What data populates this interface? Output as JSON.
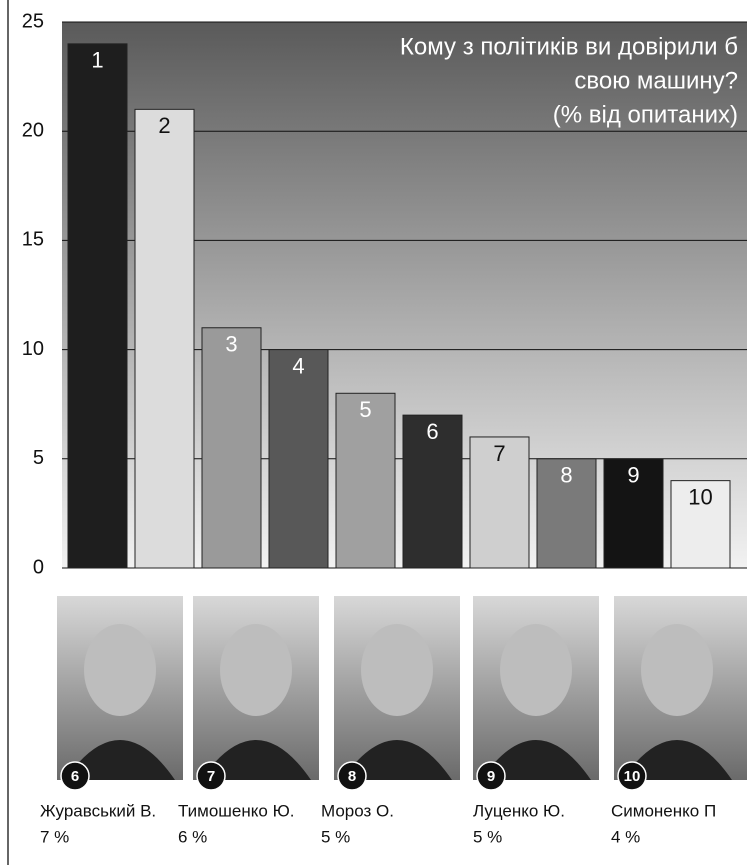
{
  "chart_data": {
    "type": "bar",
    "title": [
      "Кому з політиків ви довірили б",
      "свою машину?",
      "(% від опитаних)"
    ],
    "categories": [
      "1",
      "2",
      "3",
      "4",
      "5",
      "6",
      "7",
      "8",
      "9",
      "10"
    ],
    "values": [
      24,
      21,
      11,
      10,
      8,
      7,
      6,
      5,
      5,
      4
    ],
    "colors": [
      "#1e1e1e",
      "#dcdcdc",
      "#9a9a9a",
      "#585858",
      "#a0a0a0",
      "#2e2e2e",
      "#cfcfcf",
      "#7a7a7a",
      "#141414",
      "#ededed"
    ],
    "ylim": [
      0,
      25
    ],
    "yticks": [
      0,
      5,
      10,
      15,
      20,
      25
    ],
    "grid": true,
    "people": [
      {
        "badge": 6,
        "name": "Журавський В.",
        "share": "7 %"
      },
      {
        "badge": 7,
        "name": "Тимошенко Ю.",
        "share": "6 %"
      },
      {
        "badge": 8,
        "name": "Мороз О.",
        "share": "5 %"
      },
      {
        "badge": 9,
        "name": "Луценко Ю.",
        "share": "5 %"
      },
      {
        "badge": 10,
        "name": "Симоненко П",
        "share": "4 %"
      }
    ]
  }
}
